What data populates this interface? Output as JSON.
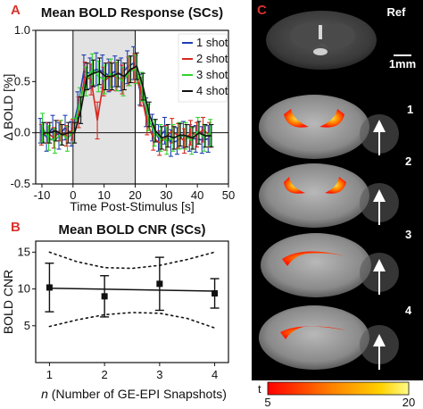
{
  "panels": {
    "A": {
      "letter": "A"
    },
    "B": {
      "letter": "B"
    },
    "C": {
      "letter": "C"
    }
  },
  "colors": {
    "panel_letter": "#d9322d",
    "stim_box": "#e3e3e3",
    "series_1": "#1f3fb4",
    "series_2": "#d62a1f",
    "series_3": "#2fd42f",
    "series_4": "#111111"
  },
  "chart_data": [
    {
      "type": "line",
      "title": "Mean BOLD Response (SCs)",
      "xlabel": "Time Post-Stimulus [s]",
      "ylabel": "Δ BOLD [%]",
      "xlim": [
        -12,
        50
      ],
      "ylim": [
        -0.5,
        1.0
      ],
      "xticks": [
        -10,
        0,
        10,
        20,
        30,
        40,
        50
      ],
      "yticks": [
        -0.5,
        0,
        0.5,
        1.0
      ],
      "ytick_labels": [
        "-0.5",
        "0.0",
        "0.5",
        "1.0"
      ],
      "grid": false,
      "legend": "top-right",
      "shaded_interval": [
        0,
        20
      ],
      "baseline": 0,
      "x": [
        -10,
        -8,
        -6,
        -4,
        -2,
        0,
        2,
        4,
        6,
        8,
        10,
        12,
        14,
        16,
        18,
        20,
        22,
        24,
        26,
        28,
        30,
        32,
        34,
        36,
        38,
        40,
        42,
        44
      ],
      "series": [
        {
          "name": "1 shot",
          "color": "#1f3fb4",
          "values": [
            0.02,
            -0.04,
            0.05,
            -0.03,
            0.05,
            -0.01,
            0.25,
            0.6,
            0.58,
            0.62,
            0.6,
            0.56,
            0.6,
            0.57,
            0.64,
            0.68,
            0.42,
            0.2,
            0.05,
            -0.05,
            0.02,
            -0.1,
            -0.08,
            -0.02,
            -0.05,
            -0.06,
            -0.07,
            -0.06
          ],
          "err": [
            0.12,
            0.14,
            0.12,
            0.13,
            0.12,
            0.12,
            0.15,
            0.16,
            0.15,
            0.16,
            0.16,
            0.16,
            0.15,
            0.16,
            0.16,
            0.16,
            0.15,
            0.14,
            0.13,
            0.13,
            0.13,
            0.13,
            0.13,
            0.13,
            0.13,
            0.13,
            0.13,
            0.13
          ]
        },
        {
          "name": "2 shot",
          "color": "#d62a1f",
          "values": [
            -0.02,
            0.0,
            -0.05,
            0.02,
            -0.03,
            0.03,
            0.2,
            0.55,
            0.52,
            0.12,
            0.5,
            0.55,
            0.55,
            0.52,
            0.6,
            0.63,
            0.4,
            0.1,
            -0.05,
            -0.1,
            -0.05,
            0.02,
            -0.03,
            -0.08,
            0.0,
            -0.02,
            0.03,
            -0.02
          ],
          "err": [
            0.1,
            0.1,
            0.1,
            0.1,
            0.1,
            0.1,
            0.15,
            0.14,
            0.15,
            0.18,
            0.14,
            0.14,
            0.14,
            0.14,
            0.14,
            0.14,
            0.14,
            0.12,
            0.12,
            0.12,
            0.12,
            0.12,
            0.12,
            0.12,
            0.12,
            0.12,
            0.12,
            0.12
          ]
        },
        {
          "name": "3 shot",
          "color": "#2fd42f",
          "values": [
            0.05,
            -0.05,
            -0.08,
            0.0,
            -0.06,
            0.02,
            0.3,
            0.5,
            0.62,
            0.55,
            0.52,
            0.58,
            0.55,
            0.5,
            0.6,
            0.62,
            0.45,
            0.15,
            0.0,
            -0.05,
            -0.08,
            -0.05,
            -0.03,
            -0.03,
            -0.08,
            0.02,
            -0.05,
            0.0
          ],
          "err": [
            0.14,
            0.12,
            0.12,
            0.12,
            0.12,
            0.12,
            0.14,
            0.14,
            0.15,
            0.15,
            0.14,
            0.14,
            0.14,
            0.14,
            0.14,
            0.14,
            0.14,
            0.13,
            0.13,
            0.13,
            0.13,
            0.13,
            0.13,
            0.13,
            0.13,
            0.13,
            0.13,
            0.13
          ]
        },
        {
          "name": "4 shot",
          "color": "#111111",
          "values": [
            0.0,
            0.0,
            0.02,
            -0.02,
            0.0,
            0.0,
            0.22,
            0.55,
            0.58,
            0.6,
            0.55,
            0.55,
            0.58,
            0.55,
            0.62,
            0.65,
            0.45,
            0.18,
            0.02,
            -0.05,
            -0.03,
            -0.05,
            -0.02,
            -0.03,
            -0.05,
            0.0,
            -0.03,
            -0.03
          ],
          "err": [
            0.1,
            0.1,
            0.1,
            0.1,
            0.1,
            0.1,
            0.13,
            0.13,
            0.13,
            0.13,
            0.13,
            0.13,
            0.13,
            0.13,
            0.13,
            0.13,
            0.13,
            0.12,
            0.11,
            0.11,
            0.11,
            0.11,
            0.11,
            0.11,
            0.11,
            0.11,
            0.11,
            0.11
          ]
        }
      ]
    },
    {
      "type": "scatter",
      "title": "Mean BOLD CNR (SCs)",
      "xlabel_italic": "n",
      "xlabel": "(Number of GE-EPI Snapshots)",
      "ylabel": "BOLD CNR",
      "xlim": [
        0.75,
        4.25
      ],
      "ylim": [
        0,
        16.5
      ],
      "xticks": [
        1,
        2,
        3,
        4
      ],
      "yticks": [
        5,
        10,
        15
      ],
      "grid": false,
      "points": [
        {
          "x": 1,
          "y": 10.2,
          "err": 3.3
        },
        {
          "x": 2,
          "y": 9.0,
          "err": 2.8
        },
        {
          "x": 3,
          "y": 10.7,
          "err": 3.6
        },
        {
          "x": 4,
          "y": 9.4,
          "err": 2.0
        }
      ],
      "fit_line": {
        "x": [
          1,
          4
        ],
        "y": [
          10.1,
          9.7
        ]
      },
      "confidence_upper": {
        "x": [
          1,
          1.5,
          2,
          2.5,
          3,
          3.5,
          4
        ],
        "y": [
          15.0,
          13.7,
          12.9,
          12.8,
          13.2,
          14.0,
          15.0
        ]
      },
      "confidence_lower": {
        "x": [
          1,
          1.5,
          2,
          2.5,
          3,
          3.5,
          4
        ],
        "y": [
          4.9,
          5.8,
          6.5,
          6.8,
          6.7,
          6.0,
          4.7
        ]
      }
    }
  ],
  "mri_panel": {
    "labels": {
      "ref": "Ref",
      "scale": "1mm",
      "rows": [
        "1",
        "2",
        "3",
        "4"
      ]
    },
    "colorbar": {
      "label": "t",
      "min": "5",
      "max": "20"
    }
  }
}
